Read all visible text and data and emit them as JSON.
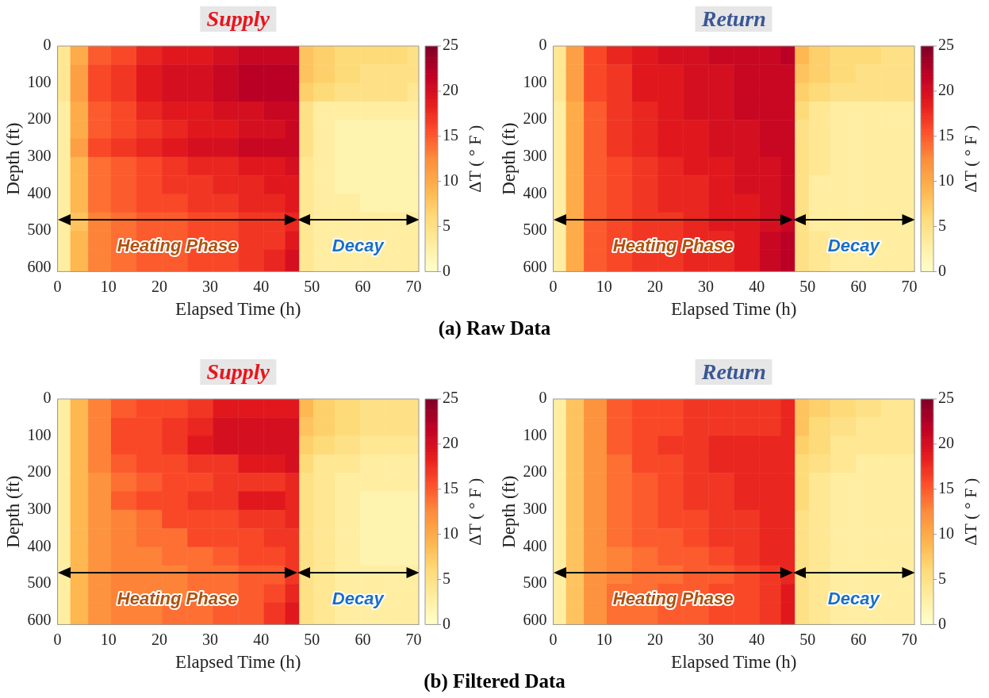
{
  "chart_data": [
    {
      "type": "heatmap",
      "title": "Supply",
      "xlabel": "Elapsed Time (h)",
      "ylabel": "Depth (ft)",
      "clabel": "ΔT ( ° F )",
      "annotations": [
        "(a) Raw Data",
        "Heating Phase",
        "Decay"
      ],
      "x": [
        1,
        4,
        8,
        13,
        18,
        23,
        28,
        33,
        38,
        43,
        46.5,
        48.5,
        52,
        57,
        62,
        67,
        70.5
      ],
      "y": [
        25,
        75,
        125,
        175,
        225,
        275,
        325,
        375,
        425,
        475,
        525,
        575
      ],
      "xlim": [
        0,
        71
      ],
      "xticks": [
        0,
        10,
        20,
        30,
        40,
        50,
        60,
        70
      ],
      "ylim": [
        610,
        0
      ],
      "yticks": [
        0,
        100,
        200,
        300,
        400,
        500,
        600
      ],
      "clim": [
        0,
        25
      ],
      "cticks": [
        0,
        5,
        10,
        15,
        20,
        25
      ],
      "cells": [
        [
          4,
          10,
          15,
          16,
          18,
          19,
          19,
          20,
          21,
          21,
          21,
          8,
          7,
          6,
          6,
          6,
          5
        ],
        [
          4,
          11,
          16,
          17,
          19,
          20,
          20,
          21,
          22,
          22,
          22,
          8,
          7,
          6,
          5,
          5,
          5
        ],
        [
          4,
          11,
          16,
          17,
          19,
          20,
          20,
          21,
          22,
          22,
          22,
          7,
          6,
          5,
          5,
          5,
          4
        ],
        [
          3,
          10,
          15,
          16,
          18,
          19,
          19,
          20,
          20,
          21,
          21,
          5,
          3,
          3,
          3,
          3,
          3
        ],
        [
          3,
          10,
          15,
          16,
          17,
          18,
          19,
          19,
          20,
          20,
          21,
          5,
          3,
          2,
          2,
          2,
          2
        ],
        [
          3,
          11,
          16,
          17,
          18,
          19,
          20,
          20,
          21,
          21,
          21,
          5,
          3,
          2,
          2,
          2,
          2
        ],
        [
          3,
          9,
          14,
          15,
          16,
          17,
          18,
          18,
          19,
          19,
          20,
          4,
          3,
          2,
          2,
          2,
          2
        ],
        [
          3,
          9,
          14,
          15,
          16,
          17,
          17,
          18,
          18,
          19,
          19,
          4,
          3,
          2,
          2,
          2,
          2
        ],
        [
          3,
          9,
          14,
          15,
          16,
          16,
          17,
          17,
          18,
          18,
          19,
          4,
          3,
          3,
          2,
          2,
          2
        ],
        [
          3,
          8,
          13,
          14,
          15,
          15,
          16,
          16,
          17,
          17,
          18,
          4,
          3,
          3,
          3,
          3,
          3
        ],
        [
          3,
          9,
          13,
          14,
          15,
          15,
          16,
          16,
          17,
          17,
          19,
          4,
          3,
          3,
          3,
          3,
          3
        ],
        [
          3,
          9,
          13,
          14,
          15,
          15,
          16,
          16,
          17,
          18,
          20,
          4,
          3,
          3,
          3,
          3,
          3
        ]
      ]
    },
    {
      "type": "heatmap",
      "title": "Return",
      "xlabel": "Elapsed Time (h)",
      "ylabel": "Depth (ft)",
      "clabel": "ΔT ( ° F )",
      "annotations": [
        "Heating Phase",
        "Decay"
      ],
      "x": [
        1,
        4,
        8,
        13,
        18,
        23,
        28,
        33,
        38,
        43,
        46.5,
        48.5,
        52,
        57,
        62,
        67,
        70.5
      ],
      "y": [
        25,
        75,
        125,
        175,
        225,
        275,
        325,
        375,
        425,
        475,
        525,
        575
      ],
      "xlim": [
        0,
        71
      ],
      "xticks": [
        0,
        10,
        20,
        30,
        40,
        50,
        60,
        70
      ],
      "ylim": [
        610,
        0
      ],
      "yticks": [
        0,
        100,
        200,
        300,
        400,
        500,
        600
      ],
      "clim": [
        0,
        25
      ],
      "cticks": [
        0,
        5,
        10,
        15,
        20,
        25
      ],
      "cells": [
        [
          4,
          11,
          16,
          18,
          19,
          20,
          20,
          21,
          21,
          21,
          22,
          9,
          7,
          6,
          6,
          5,
          5
        ],
        [
          4,
          11,
          16,
          17,
          19,
          19,
          20,
          20,
          21,
          21,
          21,
          8,
          7,
          6,
          5,
          5,
          5
        ],
        [
          4,
          11,
          16,
          17,
          19,
          19,
          20,
          20,
          21,
          21,
          21,
          7,
          6,
          5,
          5,
          5,
          5
        ],
        [
          3,
          10,
          15,
          17,
          18,
          19,
          20,
          20,
          21,
          21,
          21,
          6,
          4,
          3,
          3,
          3,
          3
        ],
        [
          3,
          10,
          15,
          17,
          18,
          19,
          19,
          20,
          20,
          21,
          21,
          5,
          4,
          3,
          3,
          3,
          3
        ],
        [
          3,
          10,
          15,
          17,
          18,
          19,
          19,
          20,
          20,
          21,
          21,
          5,
          4,
          3,
          3,
          3,
          3
        ],
        [
          3,
          10,
          15,
          16,
          17,
          18,
          19,
          19,
          20,
          20,
          21,
          5,
          4,
          3,
          3,
          3,
          3
        ],
        [
          3,
          10,
          15,
          16,
          17,
          18,
          18,
          19,
          20,
          20,
          21,
          5,
          3,
          3,
          3,
          3,
          3
        ],
        [
          3,
          10,
          15,
          16,
          17,
          18,
          18,
          19,
          19,
          20,
          21,
          5,
          3,
          3,
          3,
          3,
          3
        ],
        [
          3,
          10,
          15,
          16,
          17,
          17,
          18,
          19,
          19,
          20,
          21,
          5,
          3,
          3,
          3,
          3,
          3
        ],
        [
          3,
          10,
          15,
          16,
          17,
          17,
          18,
          18,
          19,
          21,
          22,
          5,
          4,
          3,
          3,
          3,
          3
        ],
        [
          3,
          10,
          15,
          16,
          17,
          17,
          18,
          18,
          19,
          21,
          22,
          5,
          4,
          3,
          3,
          3,
          3
        ]
      ]
    },
    {
      "type": "heatmap",
      "title": "Supply",
      "xlabel": "Elapsed Time (h)",
      "ylabel": "Depth (ft)",
      "clabel": "ΔT ( ° F )",
      "annotations": [
        "(b) Filtered Data",
        "Heating Phase",
        "Decay"
      ],
      "x": [
        1,
        4,
        8,
        13,
        18,
        23,
        28,
        33,
        38,
        43,
        46.5,
        48.5,
        52,
        57,
        62,
        67,
        70.5
      ],
      "y": [
        25,
        75,
        125,
        175,
        225,
        275,
        325,
        375,
        425,
        475,
        525,
        575
      ],
      "xlim": [
        0,
        71
      ],
      "xticks": [
        0,
        10,
        20,
        30,
        40,
        50,
        60,
        70
      ],
      "ylim": [
        610,
        0
      ],
      "yticks": [
        0,
        100,
        200,
        300,
        400,
        500,
        600
      ],
      "clim": [
        0,
        25
      ],
      "cticks": [
        0,
        5,
        10,
        15,
        20,
        25
      ],
      "cells": [
        [
          3,
          9,
          13,
          15,
          16,
          16,
          17,
          19,
          19,
          19,
          19,
          9,
          7,
          6,
          5,
          5,
          5
        ],
        [
          3,
          9,
          13,
          16,
          16,
          17,
          18,
          20,
          20,
          20,
          20,
          8,
          7,
          6,
          5,
          5,
          5
        ],
        [
          3,
          9,
          13,
          16,
          16,
          17,
          19,
          20,
          20,
          20,
          20,
          7,
          6,
          5,
          4,
          4,
          4
        ],
        [
          3,
          9,
          13,
          15,
          16,
          16,
          17,
          17,
          19,
          19,
          20,
          6,
          4,
          4,
          3,
          3,
          3
        ],
        [
          3,
          9,
          12,
          14,
          15,
          16,
          16,
          17,
          17,
          17,
          18,
          5,
          4,
          3,
          3,
          3,
          3
        ],
        [
          3,
          9,
          12,
          15,
          16,
          16,
          17,
          17,
          19,
          19,
          18,
          5,
          4,
          3,
          2,
          2,
          2
        ],
        [
          3,
          9,
          12,
          13,
          14,
          16,
          16,
          16,
          17,
          17,
          18,
          5,
          4,
          3,
          2,
          2,
          2
        ],
        [
          3,
          9,
          12,
          13,
          14,
          14,
          16,
          16,
          16,
          17,
          17,
          5,
          4,
          3,
          2,
          2,
          2
        ],
        [
          3,
          9,
          12,
          13,
          13,
          14,
          14,
          15,
          16,
          16,
          17,
          5,
          4,
          3,
          2,
          2,
          2
        ],
        [
          3,
          9,
          12,
          13,
          13,
          13,
          14,
          14,
          15,
          15,
          17,
          5,
          4,
          3,
          3,
          3,
          3
        ],
        [
          3,
          9,
          12,
          13,
          13,
          13,
          14,
          14,
          15,
          16,
          18,
          5,
          4,
          3,
          3,
          3,
          3
        ],
        [
          3,
          9,
          12,
          13,
          13,
          14,
          14,
          15,
          15,
          17,
          19,
          5,
          4,
          3,
          3,
          3,
          3
        ]
      ]
    },
    {
      "type": "heatmap",
      "title": "Return",
      "xlabel": "Elapsed Time (h)",
      "ylabel": "Depth (ft)",
      "clabel": "ΔT ( ° F )",
      "annotations": [
        "Heating Phase",
        "Decay"
      ],
      "x": [
        1,
        4,
        8,
        13,
        18,
        23,
        28,
        33,
        38,
        43,
        46.5,
        48.5,
        52,
        57,
        62,
        67,
        70.5
      ],
      "y": [
        25,
        75,
        125,
        175,
        225,
        275,
        325,
        375,
        425,
        475,
        525,
        575
      ],
      "xlim": [
        0,
        71
      ],
      "xticks": [
        0,
        10,
        20,
        30,
        40,
        50,
        60,
        70
      ],
      "ylim": [
        610,
        0
      ],
      "yticks": [
        0,
        100,
        200,
        300,
        400,
        500,
        600
      ],
      "clim": [
        0,
        25
      ],
      "cticks": [
        0,
        5,
        10,
        15,
        20,
        25
      ],
      "cells": [
        [
          3,
          8,
          12,
          15,
          16,
          16,
          17,
          17,
          17,
          17,
          18,
          8,
          7,
          6,
          5,
          4,
          4
        ],
        [
          3,
          8,
          12,
          15,
          16,
          16,
          17,
          17,
          17,
          17,
          18,
          8,
          6,
          5,
          4,
          4,
          4
        ],
        [
          3,
          8,
          12,
          15,
          16,
          17,
          17,
          18,
          18,
          18,
          18,
          7,
          6,
          4,
          4,
          4,
          4
        ],
        [
          3,
          8,
          12,
          14,
          16,
          16,
          17,
          18,
          18,
          18,
          18,
          6,
          5,
          4,
          3,
          3,
          3
        ],
        [
          3,
          8,
          12,
          14,
          15,
          16,
          17,
          17,
          18,
          18,
          18,
          6,
          4,
          3,
          3,
          3,
          3
        ],
        [
          3,
          8,
          12,
          14,
          15,
          16,
          17,
          17,
          18,
          18,
          18,
          6,
          4,
          3,
          3,
          3,
          3
        ],
        [
          3,
          8,
          12,
          14,
          15,
          16,
          16,
          17,
          17,
          18,
          18,
          5,
          4,
          3,
          3,
          3,
          3
        ],
        [
          3,
          8,
          12,
          14,
          15,
          15,
          16,
          17,
          17,
          18,
          18,
          5,
          4,
          3,
          3,
          3,
          3
        ],
        [
          3,
          8,
          12,
          13,
          14,
          15,
          15,
          16,
          17,
          18,
          18,
          5,
          4,
          3,
          3,
          3,
          3
        ],
        [
          3,
          8,
          12,
          13,
          14,
          14,
          15,
          15,
          16,
          17,
          18,
          5,
          4,
          3,
          3,
          3,
          3
        ],
        [
          3,
          8,
          12,
          14,
          14,
          15,
          15,
          16,
          16,
          17,
          19,
          5,
          4,
          3,
          3,
          3,
          3
        ],
        [
          3,
          8,
          12,
          14,
          14,
          15,
          15,
          16,
          16,
          17,
          19,
          5,
          4,
          3,
          3,
          3,
          3
        ]
      ]
    }
  ]
}
